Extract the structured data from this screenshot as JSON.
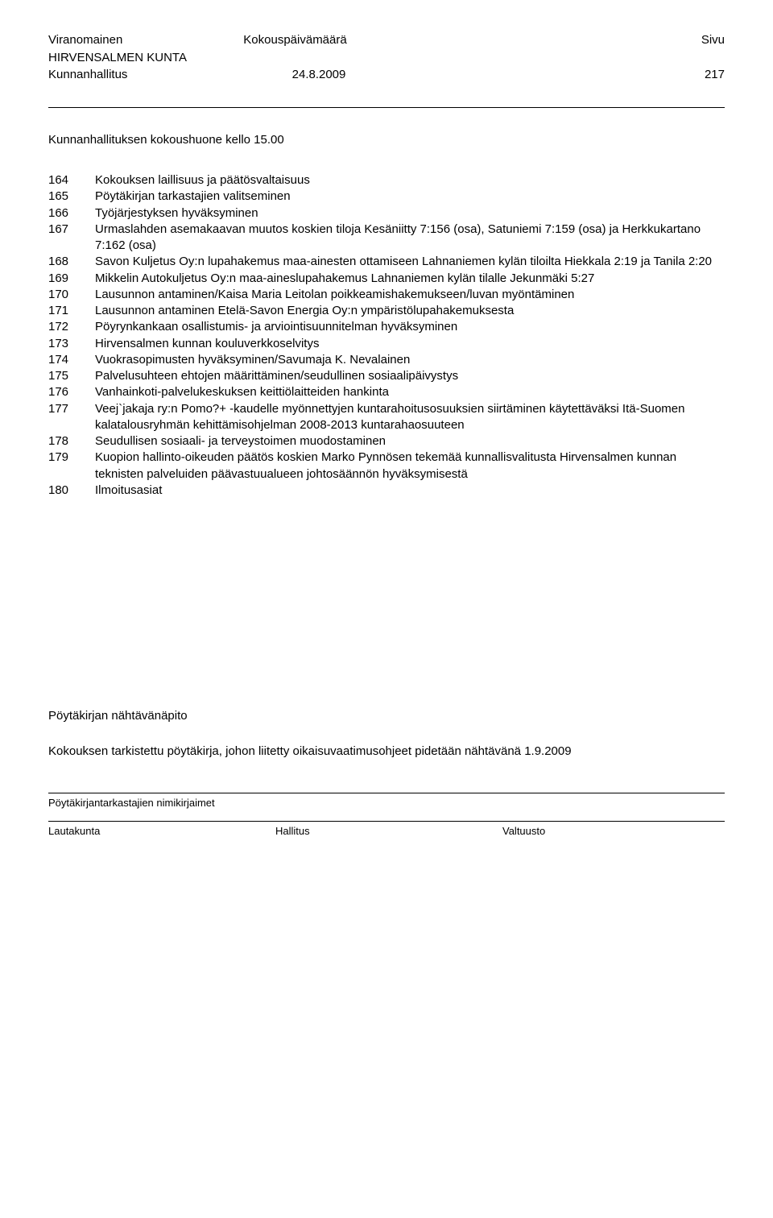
{
  "header": {
    "left1": "Viranomainen",
    "center1": "Kokouspäivämäärä",
    "right1": "Sivu",
    "left2": "HIRVENSALMEN KUNTA",
    "left3": "Kunnanhallitus",
    "date": "24.8.2009",
    "page": "217"
  },
  "meeting_room": "Kunnanhallituksen kokoushuone kello 15.00",
  "items": [
    {
      "n": "164",
      "t": "Kokouksen laillisuus ja päätösvaltaisuus"
    },
    {
      "n": "165",
      "t": "Pöytäkirjan tarkastajien valitseminen"
    },
    {
      "n": "166",
      "t": "Työjärjestyksen hyväksyminen"
    },
    {
      "n": "167",
      "t": "Urmaslahden asemakaavan muutos koskien tiloja Kesäniitty 7:156 (osa), Satuniemi 7:159 (osa) ja Herkkukartano 7:162 (osa)"
    },
    {
      "n": "168",
      "t": "Savon Kuljetus Oy:n lupahakemus maa-ainesten ottamiseen Lahnaniemen kylän tiloilta Hiekkala 2:19 ja Tanila 2:20"
    },
    {
      "n": "169",
      "t": "Mikkelin Autokuljetus Oy:n maa-aineslupahakemus Lahnaniemen kylän tilalle Jekunmäki 5:27"
    },
    {
      "n": "170",
      "t": "Lausunnon antaminen/Kaisa Maria Leitolan poikkeamishakemukseen/luvan myöntäminen"
    },
    {
      "n": "171",
      "t": "Lausunnon antaminen Etelä-Savon Energia Oy:n ympäristölupahakemuksesta"
    },
    {
      "n": "172",
      "t": "Pöyrynkankaan osallistumis- ja arviointisuunnitelman hyväksyminen"
    },
    {
      "n": "173",
      "t": "Hirvensalmen kunnan kouluverkkoselvitys"
    },
    {
      "n": "174",
      "t": "Vuokrasopimusten hyväksyminen/Savumaja K. Nevalainen"
    },
    {
      "n": "175",
      "t": "Palvelusuhteen ehtojen määrittäminen/seudullinen sosiaalipäivystys"
    },
    {
      "n": "176",
      "t": "Vanhainkoti-palvelukeskuksen keittiölaitteiden hankinta"
    },
    {
      "n": "177",
      "t": "Veej`jakaja ry:n Pomo?+ -kaudelle myönnettyjen kuntarahoitusosuuksien siirtäminen käytettäväksi Itä-Suomen kalatalousryhmän kehittämisohjelman 2008-2013 kuntarahaosuuteen"
    },
    {
      "n": "178",
      "t": "Seudullisen sosiaali- ja terveystoimen muodostaminen"
    },
    {
      "n": "179",
      "t": "Kuopion hallinto-oikeuden päätös koskien Marko Pynnösen tekemää kunnallisvalitusta Hirvensalmen  kunnan teknisten palveluiden päävastuualueen johtosäännön hyväksymisestä"
    },
    {
      "n": "180",
      "t": "Ilmoitusasiat"
    }
  ],
  "footer": {
    "title": "Pöytäkirjan nähtävänäpito",
    "text": "Kokouksen tarkistettu pöytäkirja, johon liitetty oikaisuvaatimusohjeet pidetään nähtävänä 1.9.2009",
    "sig_label": "Pöytäkirjantarkastajien nimikirjaimet",
    "sig_cells": [
      "Lautakunta",
      "Hallitus",
      "Valtuusto"
    ]
  },
  "style": {
    "font_family": "Arial",
    "font_size_body": 15,
    "font_size_footer": 13,
    "text_color": "#000000",
    "bg_color": "#ffffff"
  }
}
